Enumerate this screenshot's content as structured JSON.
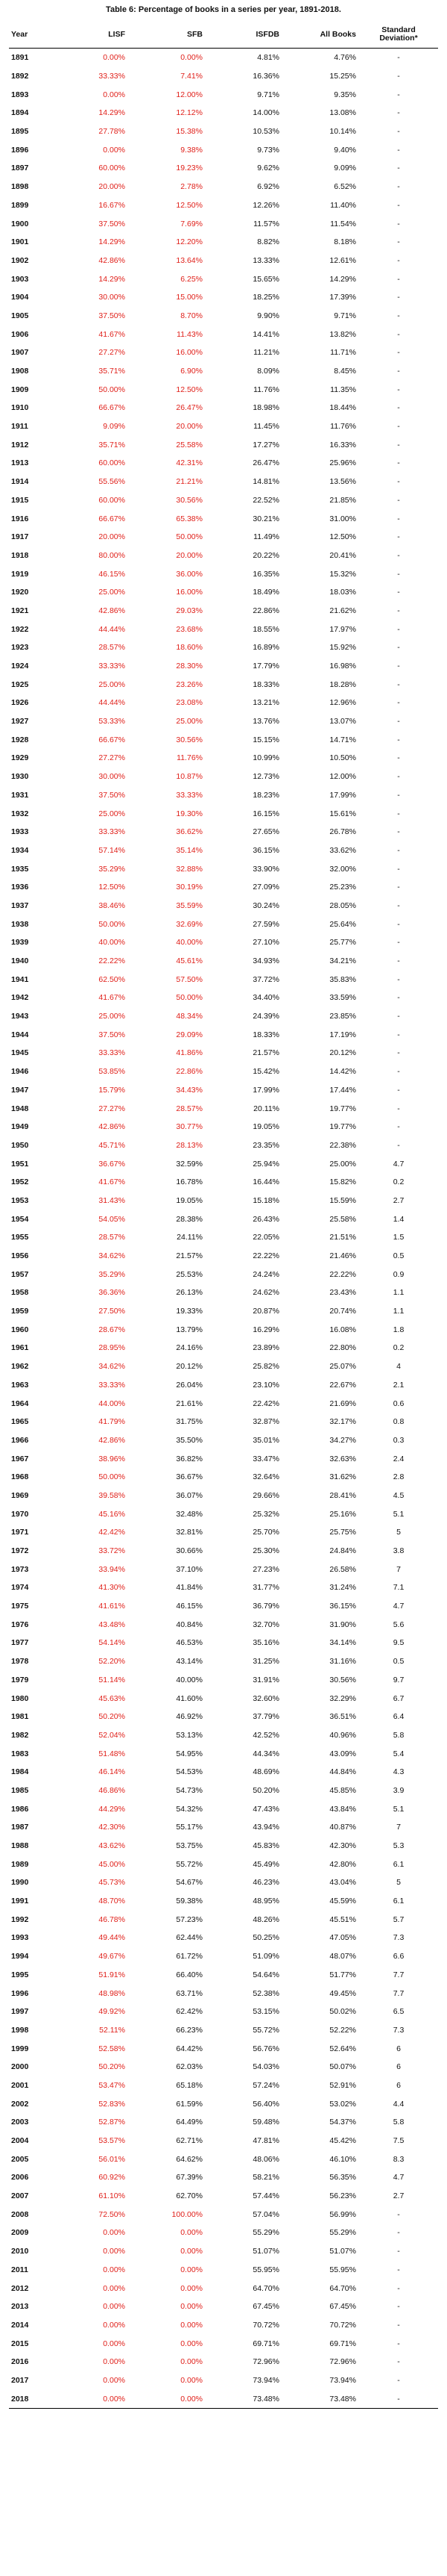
{
  "caption": "Table 6: Percentage of books in a series per year, 1891-2018.",
  "colors": {
    "highlight": "#e0201a",
    "text": "#111111"
  },
  "columns": [
    "Year",
    "LISF",
    "SFB",
    "ISFDB",
    "All Books",
    "Standard Deviation*"
  ],
  "rows": [
    [
      "1891",
      "0.00%",
      "0.00%",
      "4.81%",
      "4.76%",
      "-"
    ],
    [
      "1892",
      "33.33%",
      "7.41%",
      "16.36%",
      "15.25%",
      "-"
    ],
    [
      "1893",
      "0.00%",
      "12.00%",
      "9.71%",
      "9.35%",
      "-"
    ],
    [
      "1894",
      "14.29%",
      "12.12%",
      "14.00%",
      "13.08%",
      "-"
    ],
    [
      "1895",
      "27.78%",
      "15.38%",
      "10.53%",
      "10.14%",
      "-"
    ],
    [
      "1896",
      "0.00%",
      "9.38%",
      "9.73%",
      "9.40%",
      "-"
    ],
    [
      "1897",
      "60.00%",
      "19.23%",
      "9.62%",
      "9.09%",
      "-"
    ],
    [
      "1898",
      "20.00%",
      "2.78%",
      "6.92%",
      "6.52%",
      "-"
    ],
    [
      "1899",
      "16.67%",
      "12.50%",
      "12.26%",
      "11.40%",
      "-"
    ],
    [
      "1900",
      "37.50%",
      "7.69%",
      "11.57%",
      "11.54%",
      "-"
    ],
    [
      "1901",
      "14.29%",
      "12.20%",
      "8.82%",
      "8.18%",
      "-"
    ],
    [
      "1902",
      "42.86%",
      "13.64%",
      "13.33%",
      "12.61%",
      "-"
    ],
    [
      "1903",
      "14.29%",
      "6.25%",
      "15.65%",
      "14.29%",
      "-"
    ],
    [
      "1904",
      "30.00%",
      "15.00%",
      "18.25%",
      "17.39%",
      "-"
    ],
    [
      "1905",
      "37.50%",
      "8.70%",
      "9.90%",
      "9.71%",
      "-"
    ],
    [
      "1906",
      "41.67%",
      "11.43%",
      "14.41%",
      "13.82%",
      "-"
    ],
    [
      "1907",
      "27.27%",
      "16.00%",
      "11.21%",
      "11.71%",
      "-"
    ],
    [
      "1908",
      "35.71%",
      "6.90%",
      "8.09%",
      "8.45%",
      "-"
    ],
    [
      "1909",
      "50.00%",
      "12.50%",
      "11.76%",
      "11.35%",
      "-"
    ],
    [
      "1910",
      "66.67%",
      "26.47%",
      "18.98%",
      "18.44%",
      "-"
    ],
    [
      "1911",
      "9.09%",
      "20.00%",
      "11.45%",
      "11.76%",
      "-"
    ],
    [
      "1912",
      "35.71%",
      "25.58%",
      "17.27%",
      "16.33%",
      "-"
    ],
    [
      "1913",
      "60.00%",
      "42.31%",
      "26.47%",
      "25.96%",
      "-"
    ],
    [
      "1914",
      "55.56%",
      "21.21%",
      "14.81%",
      "13.56%",
      "-"
    ],
    [
      "1915",
      "60.00%",
      "30.56%",
      "22.52%",
      "21.85%",
      "-"
    ],
    [
      "1916",
      "66.67%",
      "65.38%",
      "30.21%",
      "31.00%",
      "-"
    ],
    [
      "1917",
      "20.00%",
      "50.00%",
      "11.49%",
      "12.50%",
      "-"
    ],
    [
      "1918",
      "80.00%",
      "20.00%",
      "20.22%",
      "20.41%",
      "-"
    ],
    [
      "1919",
      "46.15%",
      "36.00%",
      "16.35%",
      "15.32%",
      "-"
    ],
    [
      "1920",
      "25.00%",
      "16.00%",
      "18.49%",
      "18.03%",
      "-"
    ],
    [
      "1921",
      "42.86%",
      "29.03%",
      "22.86%",
      "21.62%",
      "-"
    ],
    [
      "1922",
      "44.44%",
      "23.68%",
      "18.55%",
      "17.97%",
      "-"
    ],
    [
      "1923",
      "28.57%",
      "18.60%",
      "16.89%",
      "15.92%",
      "-"
    ],
    [
      "1924",
      "33.33%",
      "28.30%",
      "17.79%",
      "16.98%",
      "-"
    ],
    [
      "1925",
      "25.00%",
      "23.26%",
      "18.33%",
      "18.28%",
      "-"
    ],
    [
      "1926",
      "44.44%",
      "23.08%",
      "13.21%",
      "12.96%",
      "-"
    ],
    [
      "1927",
      "53.33%",
      "25.00%",
      "13.76%",
      "13.07%",
      "-"
    ],
    [
      "1928",
      "66.67%",
      "30.56%",
      "15.15%",
      "14.71%",
      "-"
    ],
    [
      "1929",
      "27.27%",
      "11.76%",
      "10.99%",
      "10.50%",
      "-"
    ],
    [
      "1930",
      "30.00%",
      "10.87%",
      "12.73%",
      "12.00%",
      "-"
    ],
    [
      "1931",
      "37.50%",
      "33.33%",
      "18.23%",
      "17.99%",
      "-"
    ],
    [
      "1932",
      "25.00%",
      "19.30%",
      "16.15%",
      "15.61%",
      "-"
    ],
    [
      "1933",
      "33.33%",
      "36.62%",
      "27.65%",
      "26.78%",
      "-"
    ],
    [
      "1934",
      "57.14%",
      "35.14%",
      "36.15%",
      "33.62%",
      "-"
    ],
    [
      "1935",
      "35.29%",
      "32.88%",
      "33.90%",
      "32.00%",
      "-"
    ],
    [
      "1936",
      "12.50%",
      "30.19%",
      "27.09%",
      "25.23%",
      "-"
    ],
    [
      "1937",
      "38.46%",
      "35.59%",
      "30.24%",
      "28.05%",
      "-"
    ],
    [
      "1938",
      "50.00%",
      "32.69%",
      "27.59%",
      "25.64%",
      "-"
    ],
    [
      "1939",
      "40.00%",
      "40.00%",
      "27.10%",
      "25.77%",
      "-"
    ],
    [
      "1940",
      "22.22%",
      "45.61%",
      "34.93%",
      "34.21%",
      "-"
    ],
    [
      "1941",
      "62.50%",
      "57.50%",
      "37.72%",
      "35.83%",
      "-"
    ],
    [
      "1942",
      "41.67%",
      "50.00%",
      "34.40%",
      "33.59%",
      "-"
    ],
    [
      "1943",
      "25.00%",
      "48.34%",
      "24.39%",
      "23.85%",
      "-"
    ],
    [
      "1944",
      "37.50%",
      "29.09%",
      "18.33%",
      "17.19%",
      "-"
    ],
    [
      "1945",
      "33.33%",
      "41.86%",
      "21.57%",
      "20.12%",
      "-"
    ],
    [
      "1946",
      "53.85%",
      "22.86%",
      "15.42%",
      "14.42%",
      "-"
    ],
    [
      "1947",
      "15.79%",
      "34.43%",
      "17.99%",
      "17.44%",
      "-"
    ],
    [
      "1948",
      "27.27%",
      "28.57%",
      "20.11%",
      "19.77%",
      "-"
    ],
    [
      "1949",
      "42.86%",
      "30.77%",
      "19.05%",
      "19.77%",
      "-"
    ],
    [
      "1950",
      "45.71%",
      "28.13%",
      "23.35%",
      "22.38%",
      "-"
    ],
    [
      "1951",
      "36.67%",
      "32.59%",
      "25.94%",
      "25.00%",
      "4.7"
    ],
    [
      "1952",
      "41.67%",
      "16.78%",
      "16.44%",
      "15.82%",
      "0.2"
    ],
    [
      "1953",
      "31.43%",
      "19.05%",
      "15.18%",
      "15.59%",
      "2.7"
    ],
    [
      "1954",
      "54.05%",
      "28.38%",
      "26.43%",
      "25.58%",
      "1.4"
    ],
    [
      "1955",
      "28.57%",
      "24.11%",
      "22.05%",
      "21.51%",
      "1.5"
    ],
    [
      "1956",
      "34.62%",
      "21.57%",
      "22.22%",
      "21.46%",
      "0.5"
    ],
    [
      "1957",
      "35.29%",
      "25.53%",
      "24.24%",
      "22.22%",
      "0.9"
    ],
    [
      "1958",
      "36.36%",
      "26.13%",
      "24.62%",
      "23.43%",
      "1.1"
    ],
    [
      "1959",
      "27.50%",
      "19.33%",
      "20.87%",
      "20.74%",
      "1.1"
    ],
    [
      "1960",
      "28.67%",
      "13.79%",
      "16.29%",
      "16.08%",
      "1.8"
    ],
    [
      "1961",
      "28.95%",
      "24.16%",
      "23.89%",
      "22.80%",
      "0.2"
    ],
    [
      "1962",
      "34.62%",
      "20.12%",
      "25.82%",
      "25.07%",
      "4"
    ],
    [
      "1963",
      "33.33%",
      "26.04%",
      "23.10%",
      "22.67%",
      "2.1"
    ],
    [
      "1964",
      "44.00%",
      "21.61%",
      "22.42%",
      "21.69%",
      "0.6"
    ],
    [
      "1965",
      "41.79%",
      "31.75%",
      "32.87%",
      "32.17%",
      "0.8"
    ],
    [
      "1966",
      "42.86%",
      "35.50%",
      "35.01%",
      "34.27%",
      "0.3"
    ],
    [
      "1967",
      "38.96%",
      "36.82%",
      "33.47%",
      "32.63%",
      "2.4"
    ],
    [
      "1968",
      "50.00%",
      "36.67%",
      "32.64%",
      "31.62%",
      "2.8"
    ],
    [
      "1969",
      "39.58%",
      "36.07%",
      "29.66%",
      "28.41%",
      "4.5"
    ],
    [
      "1970",
      "45.16%",
      "32.48%",
      "25.32%",
      "25.16%",
      "5.1"
    ],
    [
      "1971",
      "42.42%",
      "32.81%",
      "25.70%",
      "25.75%",
      "5"
    ],
    [
      "1972",
      "33.72%",
      "30.66%",
      "25.30%",
      "24.84%",
      "3.8"
    ],
    [
      "1973",
      "33.94%",
      "37.10%",
      "27.23%",
      "26.58%",
      "7"
    ],
    [
      "1974",
      "41.30%",
      "41.84%",
      "31.77%",
      "31.24%",
      "7.1"
    ],
    [
      "1975",
      "41.61%",
      "46.15%",
      "36.79%",
      "36.15%",
      "4.7"
    ],
    [
      "1976",
      "43.48%",
      "40.84%",
      "32.70%",
      "31.90%",
      "5.6"
    ],
    [
      "1977",
      "54.14%",
      "46.53%",
      "35.16%",
      "34.14%",
      "9.5"
    ],
    [
      "1978",
      "52.20%",
      "43.14%",
      "31.25%",
      "31.16%",
      "0.5"
    ],
    [
      "1979",
      "51.14%",
      "40.00%",
      "31.91%",
      "30.56%",
      "9.7"
    ],
    [
      "1980",
      "45.63%",
      "41.60%",
      "32.60%",
      "32.29%",
      "6.7"
    ],
    [
      "1981",
      "50.20%",
      "46.92%",
      "37.79%",
      "36.51%",
      "6.4"
    ],
    [
      "1982",
      "52.04%",
      "53.13%",
      "42.52%",
      "40.96%",
      "5.8"
    ],
    [
      "1983",
      "51.48%",
      "54.95%",
      "44.34%",
      "43.09%",
      "5.4"
    ],
    [
      "1984",
      "46.14%",
      "54.53%",
      "48.69%",
      "44.84%",
      "4.3"
    ],
    [
      "1985",
      "46.86%",
      "54.73%",
      "50.20%",
      "45.85%",
      "3.9"
    ],
    [
      "1986",
      "44.29%",
      "54.32%",
      "47.43%",
      "43.84%",
      "5.1"
    ],
    [
      "1987",
      "42.30%",
      "55.17%",
      "43.94%",
      "40.87%",
      "7"
    ],
    [
      "1988",
      "43.62%",
      "53.75%",
      "45.83%",
      "42.30%",
      "5.3"
    ],
    [
      "1989",
      "45.00%",
      "55.72%",
      "45.49%",
      "42.80%",
      "6.1"
    ],
    [
      "1990",
      "45.73%",
      "54.67%",
      "46.23%",
      "43.04%",
      "5"
    ],
    [
      "1991",
      "48.70%",
      "59.38%",
      "48.95%",
      "45.59%",
      "6.1"
    ],
    [
      "1992",
      "46.78%",
      "57.23%",
      "48.26%",
      "45.51%",
      "5.7"
    ],
    [
      "1993",
      "49.44%",
      "62.44%",
      "50.25%",
      "47.05%",
      "7.3"
    ],
    [
      "1994",
      "49.67%",
      "61.72%",
      "51.09%",
      "48.07%",
      "6.6"
    ],
    [
      "1995",
      "51.91%",
      "66.40%",
      "54.64%",
      "51.77%",
      "7.7"
    ],
    [
      "1996",
      "48.98%",
      "63.71%",
      "52.38%",
      "49.45%",
      "7.7"
    ],
    [
      "1997",
      "49.92%",
      "62.42%",
      "53.15%",
      "50.02%",
      "6.5"
    ],
    [
      "1998",
      "52.11%",
      "66.23%",
      "55.72%",
      "52.22%",
      "7.3"
    ],
    [
      "1999",
      "52.58%",
      "64.42%",
      "56.76%",
      "52.64%",
      "6"
    ],
    [
      "2000",
      "50.20%",
      "62.03%",
      "54.03%",
      "50.07%",
      "6"
    ],
    [
      "2001",
      "53.47%",
      "65.18%",
      "57.24%",
      "52.91%",
      "6"
    ],
    [
      "2002",
      "52.83%",
      "61.59%",
      "56.40%",
      "53.02%",
      "4.4"
    ],
    [
      "2003",
      "52.87%",
      "64.49%",
      "59.48%",
      "54.37%",
      "5.8"
    ],
    [
      "2004",
      "53.57%",
      "62.71%",
      "47.81%",
      "45.42%",
      "7.5"
    ],
    [
      "2005",
      "56.01%",
      "64.62%",
      "48.06%",
      "46.10%",
      "8.3"
    ],
    [
      "2006",
      "60.92%",
      "67.39%",
      "58.21%",
      "56.35%",
      "4.7"
    ],
    [
      "2007",
      "61.10%",
      "62.70%",
      "57.44%",
      "56.23%",
      "2.7"
    ],
    [
      "2008",
      "72.50%",
      "100.00%",
      "57.04%",
      "56.99%",
      "-"
    ],
    [
      "2009",
      "0.00%",
      "0.00%",
      "55.29%",
      "55.29%",
      "-"
    ],
    [
      "2010",
      "0.00%",
      "0.00%",
      "51.07%",
      "51.07%",
      "-"
    ],
    [
      "2011",
      "0.00%",
      "0.00%",
      "55.95%",
      "55.95%",
      "-"
    ],
    [
      "2012",
      "0.00%",
      "0.00%",
      "64.70%",
      "64.70%",
      "-"
    ],
    [
      "2013",
      "0.00%",
      "0.00%",
      "67.45%",
      "67.45%",
      "-"
    ],
    [
      "2014",
      "0.00%",
      "0.00%",
      "70.72%",
      "70.72%",
      "-"
    ],
    [
      "2015",
      "0.00%",
      "0.00%",
      "69.71%",
      "69.71%",
      "-"
    ],
    [
      "2016",
      "0.00%",
      "0.00%",
      "72.96%",
      "72.96%",
      "-"
    ],
    [
      "2017",
      "0.00%",
      "0.00%",
      "73.94%",
      "73.94%",
      "-"
    ],
    [
      "2018",
      "0.00%",
      "0.00%",
      "73.48%",
      "73.48%",
      "-"
    ]
  ]
}
